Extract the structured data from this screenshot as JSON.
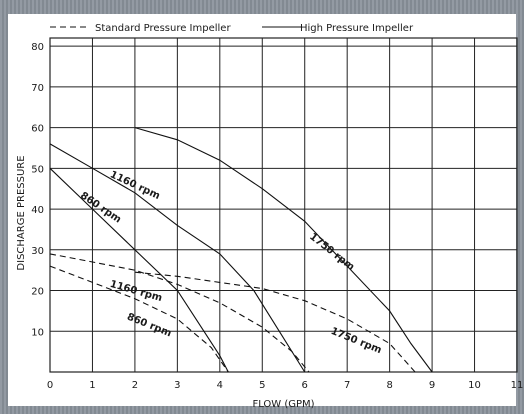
{
  "chart_data": {
    "type": "line",
    "xlabel": "FLOW (GPM)",
    "ylabel": "DISCHARGE PRESSURE",
    "xlim": [
      0,
      11
    ],
    "ylim": [
      0,
      82
    ],
    "x_ticks": [
      0,
      1,
      2,
      3,
      4,
      5,
      6,
      7,
      8,
      9,
      10,
      11
    ],
    "y_ticks": [
      10,
      20,
      30,
      40,
      50,
      60,
      70,
      80
    ],
    "grid": true,
    "legend": {
      "placement": "top",
      "items": [
        {
          "label": "Standard Pressure Impeller",
          "style": "dashed"
        },
        {
          "label": "High Pressure Impeller",
          "style": "solid"
        }
      ]
    },
    "series": [
      {
        "style": "solid",
        "points": [
          [
            0,
            50
          ],
          [
            1,
            40
          ],
          [
            2,
            30
          ],
          [
            3,
            20
          ],
          [
            3.5,
            12
          ],
          [
            4,
            4
          ],
          [
            4.2,
            0
          ]
        ]
      },
      {
        "style": "solid",
        "points": [
          [
            0,
            56
          ],
          [
            1,
            50
          ],
          [
            2,
            44
          ],
          [
            3,
            36
          ],
          [
            4,
            29
          ],
          [
            4.8,
            20
          ],
          [
            5.4,
            10
          ],
          [
            6,
            0
          ]
        ]
      },
      {
        "style": "solid",
        "points": [
          [
            2,
            60
          ],
          [
            3,
            57
          ],
          [
            4,
            52
          ],
          [
            5,
            45
          ],
          [
            6,
            37
          ],
          [
            7,
            26
          ],
          [
            8,
            15
          ],
          [
            8.5,
            7
          ],
          [
            9,
            0
          ]
        ]
      },
      {
        "style": "dashed",
        "points": [
          [
            0,
            26
          ],
          [
            1,
            22
          ],
          [
            2,
            18
          ],
          [
            3,
            13
          ],
          [
            3.8,
            6
          ],
          [
            4.2,
            0
          ]
        ]
      },
      {
        "style": "dashed",
        "points": [
          [
            0,
            29
          ],
          [
            1,
            27
          ],
          [
            2,
            25
          ],
          [
            3,
            21.5
          ],
          [
            4,
            17
          ],
          [
            5,
            11
          ],
          [
            5.7,
            5
          ],
          [
            6.1,
            0
          ]
        ]
      },
      {
        "style": "dashed",
        "points": [
          [
            2,
            24.5
          ],
          [
            3,
            23.5
          ],
          [
            4,
            22
          ],
          [
            5,
            20.5
          ],
          [
            6,
            17.5
          ],
          [
            7,
            13
          ],
          [
            8,
            7
          ],
          [
            8.6,
            0
          ]
        ]
      }
    ],
    "annotations": [
      {
        "text": "860 rpm",
        "x": 0.7,
        "y": 43,
        "angle": 34
      },
      {
        "text": "1160 rpm",
        "x": 1.4,
        "y": 48,
        "angle": 25
      },
      {
        "text": "1750 rpm",
        "x": 6.1,
        "y": 33,
        "angle": 38
      },
      {
        "text": "1160 rpm",
        "x": 1.4,
        "y": 21,
        "angle": 16
      },
      {
        "text": "860 rpm",
        "x": 1.8,
        "y": 13,
        "angle": 22
      },
      {
        "text": "1750 rpm",
        "x": 6.6,
        "y": 9.5,
        "angle": 22
      }
    ]
  }
}
